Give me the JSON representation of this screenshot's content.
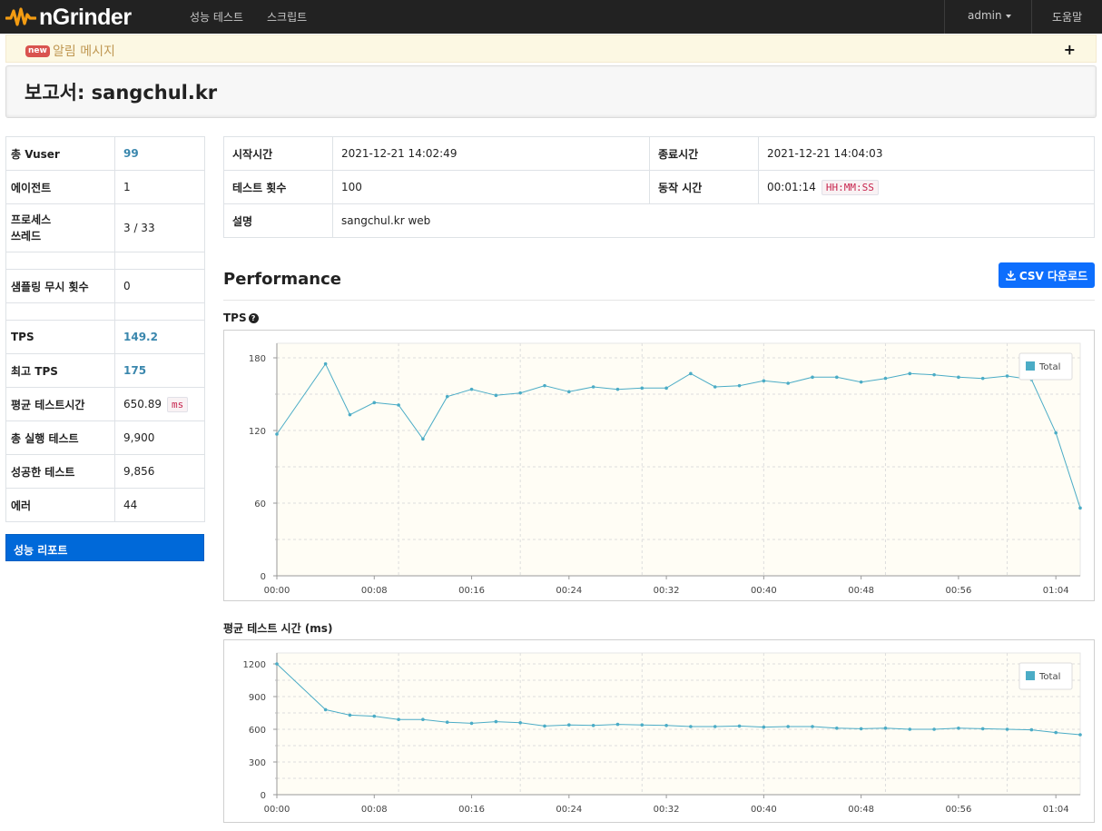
{
  "navbar": {
    "brand": "nGrinder",
    "menu": [
      "성능 테스트",
      "스크립트"
    ],
    "user": "admin",
    "help": "도움말"
  },
  "notice": {
    "badge": "new",
    "text": "알림 메시지",
    "expand": "+"
  },
  "title": "보고서: sangchul.kr",
  "stats": [
    {
      "label": "총 Vuser",
      "value": "99",
      "highlight": true
    },
    {
      "label": "에이전트",
      "value": "1"
    },
    {
      "label": "프로세스\n쓰레드",
      "value": "3 / 33"
    },
    {
      "label": "",
      "value": ""
    },
    {
      "label": "샘플링 무시 횟수",
      "value": "0"
    },
    {
      "label": "",
      "value": ""
    },
    {
      "label": "TPS",
      "value": "149.2",
      "highlight": true
    },
    {
      "label": "최고 TPS",
      "value": "175",
      "highlight": true
    },
    {
      "label": "평균 테스트시간",
      "value": "650.89",
      "unit": "ms"
    },
    {
      "label": "총 실행 테스트",
      "value": "9,900"
    },
    {
      "label": "성공한 테스트",
      "value": "9,856"
    },
    {
      "label": "에러",
      "value": "44"
    }
  ],
  "report_button": "성능 리포트",
  "info": {
    "start_label": "시작시간",
    "start": "2021-12-21 14:02:49",
    "end_label": "종료시간",
    "end": "2021-12-21 14:04:03",
    "runs_label": "테스트 횟수",
    "runs": "100",
    "duration_label": "동작 시간",
    "duration": "00:01:14",
    "duration_format": "HH:MM:SS",
    "desc_label": "설명",
    "desc": "sangchul.kr web"
  },
  "performance": {
    "title": "Performance",
    "csv_button": "CSV 다운로드"
  },
  "colors": {
    "line": "#4bacc6",
    "plot_bg": "#fffdf5",
    "accent": "#0d6efd"
  },
  "chart_data": [
    {
      "type": "line",
      "title": "TPS",
      "x_tick_labels": [
        "00:00",
        "00:08",
        "00:16",
        "00:24",
        "00:32",
        "00:40",
        "00:48",
        "00:56",
        "01:04"
      ],
      "x_seconds": [
        0,
        4,
        6,
        8,
        10,
        12,
        14,
        16,
        18,
        20,
        22,
        24,
        26,
        28,
        30,
        32,
        34,
        36,
        38,
        40,
        42,
        44,
        46,
        48,
        50,
        52,
        54,
        56,
        58,
        60,
        62,
        64,
        66
      ],
      "values": [
        117,
        175,
        133,
        143,
        141,
        113,
        148,
        154,
        149,
        151,
        157,
        152,
        156,
        154,
        155,
        155,
        167,
        156,
        157,
        161,
        159,
        164,
        164,
        160,
        163,
        167,
        166,
        164,
        163,
        165,
        162,
        118,
        56
      ],
      "yticks": [
        0,
        60,
        120,
        180
      ],
      "ylim": [
        0,
        192
      ],
      "xlim": [
        0,
        66
      ],
      "legend": "Total",
      "legend_position": "top-right"
    },
    {
      "type": "line",
      "title": "평균 테스트 시간 (ms)",
      "x_tick_labels": [
        "00:00",
        "00:08",
        "00:16",
        "00:24",
        "00:32",
        "00:40",
        "00:48",
        "00:56",
        "01:04"
      ],
      "x_seconds": [
        0,
        4,
        6,
        8,
        10,
        12,
        14,
        16,
        18,
        20,
        22,
        24,
        26,
        28,
        30,
        32,
        34,
        36,
        38,
        40,
        42,
        44,
        46,
        48,
        50,
        52,
        54,
        56,
        58,
        60,
        62,
        64,
        66
      ],
      "values": [
        1200,
        780,
        730,
        720,
        690,
        690,
        665,
        655,
        670,
        660,
        630,
        640,
        635,
        645,
        640,
        635,
        625,
        625,
        630,
        620,
        625,
        625,
        610,
        605,
        610,
        600,
        600,
        610,
        605,
        600,
        595,
        570,
        550
      ],
      "yticks": [
        0,
        300,
        600,
        900,
        1200
      ],
      "ylim": [
        0,
        1300
      ],
      "xlim": [
        0,
        66
      ],
      "legend": "Total",
      "legend_position": "top-right"
    }
  ]
}
